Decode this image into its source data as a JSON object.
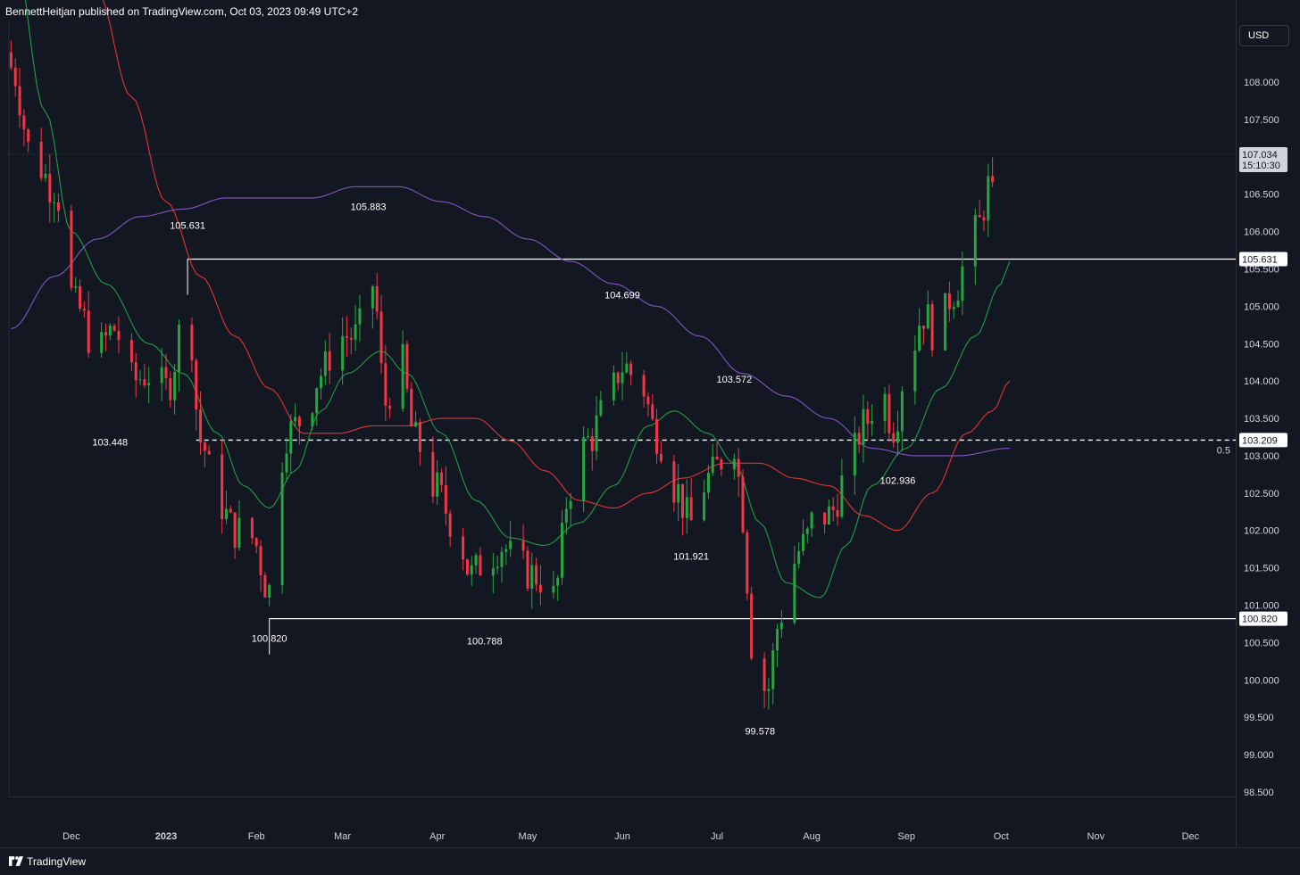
{
  "header": {
    "publisher_line": "BennettHeitjan published on TradingView.com, Oct 03, 2023 09:49 UTC+2"
  },
  "footer": {
    "brand": "TradingView"
  },
  "currency_button": "USD",
  "colors": {
    "background": "#131722",
    "candle_up": "#26a641",
    "candle_down": "#f23645",
    "ma_fast": "#1f9d45",
    "ma_mid": "#e03434",
    "ma_slow": "#7e57c2",
    "level_line": "#ffffff",
    "text": "#d1d4dc"
  },
  "chart_data": {
    "type": "candlestick",
    "symbol_currency": "USD",
    "y_range": [
      98.3,
      109.0
    ],
    "y_ticks": [
      "108.000",
      "107.500",
      "107.000",
      "106.500",
      "106.000",
      "105.500",
      "105.000",
      "104.500",
      "104.000",
      "103.500",
      "103.000",
      "102.500",
      "102.000",
      "101.500",
      "101.000",
      "100.500",
      "100.000",
      "99.500",
      "99.000",
      "98.500"
    ],
    "x_ticks": [
      {
        "label": "Dec",
        "index": 14
      },
      {
        "label": "2023",
        "index": 36,
        "bold": true
      },
      {
        "label": "Feb",
        "index": 57
      },
      {
        "label": "Mar",
        "index": 77
      },
      {
        "label": "Apr",
        "index": 99
      },
      {
        "label": "May",
        "index": 120
      },
      {
        "label": "Jun",
        "index": 142
      },
      {
        "label": "Jul",
        "index": 164
      },
      {
        "label": "Aug",
        "index": 186
      },
      {
        "label": "Sep",
        "index": 208
      },
      {
        "label": "Oct",
        "index": 230
      },
      {
        "label": "Nov",
        "index": 252
      },
      {
        "label": "Dec",
        "index": 274
      }
    ],
    "current_price": {
      "value": 107.034,
      "label": "107.034",
      "countdown": "15:10:30"
    },
    "levels": [
      {
        "value": 105.631,
        "label": "105.631",
        "start_index": 41,
        "style": "solid"
      },
      {
        "value": 100.82,
        "label": "100.820",
        "start_index": 60,
        "style": "solid"
      },
      {
        "value": 103.209,
        "label": "103.209",
        "start_index": 43,
        "style": "dashed",
        "fib_label": "0.5"
      }
    ],
    "annotations": [
      {
        "label": "105.631",
        "index": 41,
        "value": 105.631,
        "pos": "above"
      },
      {
        "label": "105.883",
        "index": 83,
        "value": 105.883,
        "pos": "above"
      },
      {
        "label": "104.699",
        "index": 142,
        "value": 104.699,
        "pos": "above"
      },
      {
        "label": "103.572",
        "index": 168,
        "value": 103.572,
        "pos": "above"
      },
      {
        "label": "103.448",
        "index": 23,
        "value": 103.448,
        "pos": "below"
      },
      {
        "label": "100.820",
        "index": 60,
        "value": 100.82,
        "pos": "below"
      },
      {
        "label": "100.788",
        "index": 110,
        "value": 100.788,
        "pos": "below"
      },
      {
        "label": "101.921",
        "index": 158,
        "value": 101.921,
        "pos": "below"
      },
      {
        "label": "99.578",
        "index": 174,
        "value": 99.578,
        "pos": "below"
      },
      {
        "label": "102.936",
        "index": 206,
        "value": 102.936,
        "pos": "below"
      }
    ],
    "close_path": [
      {
        "i": 0,
        "v": 108.2
      },
      {
        "i": 5,
        "v": 107.0
      },
      {
        "i": 10,
        "v": 106.6
      },
      {
        "i": 15,
        "v": 105.0
      },
      {
        "i": 20,
        "v": 104.4
      },
      {
        "i": 24,
        "v": 104.7
      },
      {
        "i": 28,
        "v": 104.0
      },
      {
        "i": 32,
        "v": 104.1
      },
      {
        "i": 36,
        "v": 103.9
      },
      {
        "i": 41,
        "v": 105.0
      },
      {
        "i": 44,
        "v": 103.2
      },
      {
        "i": 48,
        "v": 102.4
      },
      {
        "i": 52,
        "v": 102.0
      },
      {
        "i": 56,
        "v": 101.9
      },
      {
        "i": 60,
        "v": 101.2
      },
      {
        "i": 64,
        "v": 103.3
      },
      {
        "i": 68,
        "v": 103.5
      },
      {
        "i": 72,
        "v": 104.1
      },
      {
        "i": 76,
        "v": 104.6
      },
      {
        "i": 80,
        "v": 104.6
      },
      {
        "i": 84,
        "v": 105.3
      },
      {
        "i": 87,
        "v": 103.7
      },
      {
        "i": 90,
        "v": 104.4
      },
      {
        "i": 94,
        "v": 103.2
      },
      {
        "i": 98,
        "v": 102.6
      },
      {
        "i": 103,
        "v": 102.1
      },
      {
        "i": 107,
        "v": 101.4
      },
      {
        "i": 110,
        "v": 101.6
      },
      {
        "i": 114,
        "v": 101.8
      },
      {
        "i": 118,
        "v": 101.5
      },
      {
        "i": 122,
        "v": 101.4
      },
      {
        "i": 126,
        "v": 101.1
      },
      {
        "i": 130,
        "v": 102.6
      },
      {
        "i": 134,
        "v": 103.2
      },
      {
        "i": 138,
        "v": 103.6
      },
      {
        "i": 142,
        "v": 104.2
      },
      {
        "i": 146,
        "v": 104.0
      },
      {
        "i": 150,
        "v": 103.3
      },
      {
        "i": 154,
        "v": 102.6
      },
      {
        "i": 158,
        "v": 102.1
      },
      {
        "i": 162,
        "v": 102.7
      },
      {
        "i": 166,
        "v": 103.0
      },
      {
        "i": 168,
        "v": 103.2
      },
      {
        "i": 170,
        "v": 102.2
      },
      {
        "i": 172,
        "v": 100.5
      },
      {
        "i": 174,
        "v": 99.9
      },
      {
        "i": 176,
        "v": 99.9
      },
      {
        "i": 178,
        "v": 100.7
      },
      {
        "i": 181,
        "v": 101.5
      },
      {
        "i": 184,
        "v": 101.8
      },
      {
        "i": 187,
        "v": 102.2
      },
      {
        "i": 190,
        "v": 102.2
      },
      {
        "i": 194,
        "v": 102.7
      },
      {
        "i": 198,
        "v": 103.4
      },
      {
        "i": 202,
        "v": 103.9
      },
      {
        "i": 205,
        "v": 103.4
      },
      {
        "i": 208,
        "v": 104.2
      },
      {
        "i": 212,
        "v": 104.9
      },
      {
        "i": 215,
        "v": 104.6
      },
      {
        "i": 219,
        "v": 105.2
      },
      {
        "i": 222,
        "v": 105.6
      },
      {
        "i": 225,
        "v": 106.1
      },
      {
        "i": 227,
        "v": 106.6
      },
      {
        "i": 229,
        "v": 106.2
      },
      {
        "i": 230,
        "v": 107.03
      }
    ],
    "moving_averages": [
      {
        "color": "#1f9d45",
        "points": [
          {
            "i": 0,
            "v": 110.0
          },
          {
            "i": 8,
            "v": 107.6
          },
          {
            "i": 14,
            "v": 106.0
          },
          {
            "i": 22,
            "v": 105.3
          },
          {
            "i": 32,
            "v": 104.5
          },
          {
            "i": 40,
            "v": 104.1
          },
          {
            "i": 48,
            "v": 103.3
          },
          {
            "i": 54,
            "v": 102.6
          },
          {
            "i": 60,
            "v": 102.3
          },
          {
            "i": 66,
            "v": 102.8
          },
          {
            "i": 72,
            "v": 103.6
          },
          {
            "i": 78,
            "v": 104.1
          },
          {
            "i": 86,
            "v": 104.4
          },
          {
            "i": 92,
            "v": 104.1
          },
          {
            "i": 100,
            "v": 103.3
          },
          {
            "i": 108,
            "v": 102.4
          },
          {
            "i": 116,
            "v": 101.9
          },
          {
            "i": 124,
            "v": 101.8
          },
          {
            "i": 132,
            "v": 102.1
          },
          {
            "i": 140,
            "v": 102.6
          },
          {
            "i": 148,
            "v": 103.4
          },
          {
            "i": 154,
            "v": 103.6
          },
          {
            "i": 162,
            "v": 103.3
          },
          {
            "i": 168,
            "v": 102.9
          },
          {
            "i": 174,
            "v": 102.1
          },
          {
            "i": 180,
            "v": 101.3
          },
          {
            "i": 188,
            "v": 101.1
          },
          {
            "i": 194,
            "v": 101.8
          },
          {
            "i": 200,
            "v": 102.6
          },
          {
            "i": 208,
            "v": 103.1
          },
          {
            "i": 216,
            "v": 103.9
          },
          {
            "i": 224,
            "v": 104.6
          },
          {
            "i": 230,
            "v": 105.3
          },
          {
            "i": 232,
            "v": 105.6
          }
        ]
      },
      {
        "color": "#e03434",
        "points": [
          {
            "i": 20,
            "v": 109.2
          },
          {
            "i": 28,
            "v": 107.8
          },
          {
            "i": 36,
            "v": 106.4
          },
          {
            "i": 44,
            "v": 105.4
          },
          {
            "i": 52,
            "v": 104.6
          },
          {
            "i": 60,
            "v": 103.9
          },
          {
            "i": 68,
            "v": 103.3
          },
          {
            "i": 76,
            "v": 103.3
          },
          {
            "i": 84,
            "v": 103.4
          },
          {
            "i": 92,
            "v": 103.4
          },
          {
            "i": 100,
            "v": 103.5
          },
          {
            "i": 108,
            "v": 103.5
          },
          {
            "i": 116,
            "v": 103.2
          },
          {
            "i": 124,
            "v": 102.8
          },
          {
            "i": 132,
            "v": 102.4
          },
          {
            "i": 140,
            "v": 102.3
          },
          {
            "i": 148,
            "v": 102.5
          },
          {
            "i": 156,
            "v": 102.7
          },
          {
            "i": 166,
            "v": 102.9
          },
          {
            "i": 174,
            "v": 102.9
          },
          {
            "i": 182,
            "v": 102.7
          },
          {
            "i": 190,
            "v": 102.6
          },
          {
            "i": 198,
            "v": 102.2
          },
          {
            "i": 206,
            "v": 102.0
          },
          {
            "i": 214,
            "v": 102.5
          },
          {
            "i": 222,
            "v": 103.3
          },
          {
            "i": 228,
            "v": 103.6
          },
          {
            "i": 232,
            "v": 104.0
          }
        ]
      },
      {
        "color": "#7e57c2",
        "points": [
          {
            "i": 0,
            "v": 104.7
          },
          {
            "i": 10,
            "v": 105.4
          },
          {
            "i": 20,
            "v": 105.9
          },
          {
            "i": 30,
            "v": 106.2
          },
          {
            "i": 40,
            "v": 106.3
          },
          {
            "i": 50,
            "v": 106.45
          },
          {
            "i": 60,
            "v": 106.45
          },
          {
            "i": 70,
            "v": 106.45
          },
          {
            "i": 80,
            "v": 106.6
          },
          {
            "i": 90,
            "v": 106.6
          },
          {
            "i": 100,
            "v": 106.4
          },
          {
            "i": 110,
            "v": 106.2
          },
          {
            "i": 120,
            "v": 105.9
          },
          {
            "i": 130,
            "v": 105.6
          },
          {
            "i": 140,
            "v": 105.3
          },
          {
            "i": 150,
            "v": 105.0
          },
          {
            "i": 160,
            "v": 104.6
          },
          {
            "i": 170,
            "v": 104.1
          },
          {
            "i": 180,
            "v": 103.8
          },
          {
            "i": 190,
            "v": 103.5
          },
          {
            "i": 200,
            "v": 103.1
          },
          {
            "i": 210,
            "v": 103.0
          },
          {
            "i": 220,
            "v": 103.0
          },
          {
            "i": 232,
            "v": 103.1
          }
        ]
      }
    ]
  }
}
